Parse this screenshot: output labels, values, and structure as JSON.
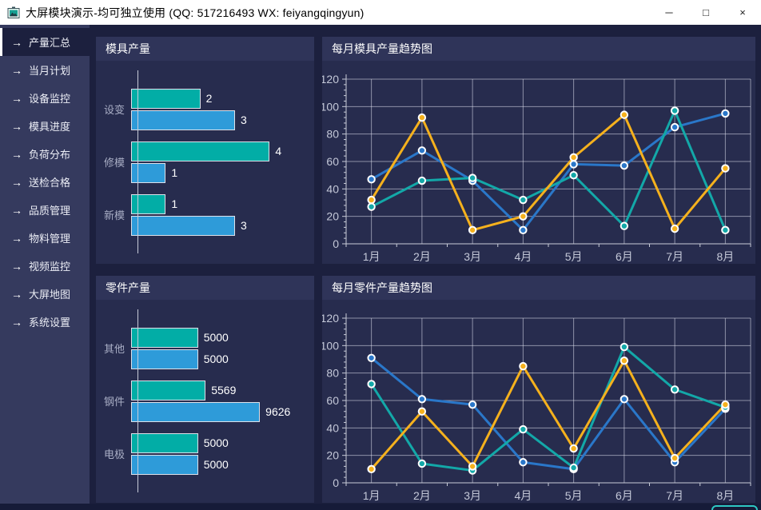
{
  "window": {
    "title": "大屏模块演示-均可独立使用 (QQ: 517216493  WX: feiyangqingyun)",
    "app_icon": "picture-icon",
    "controls": {
      "minimize": "─",
      "maximize": "□",
      "close": "×"
    }
  },
  "colors": {
    "titlebar_bg": "#ffffff",
    "content_bg": "#1c203e",
    "sidebar_bg": "#353a5e",
    "sidebar_active_bg": "#1c203e",
    "panel_bg": "#272c4e",
    "panel_header_bg": "#2f3459",
    "bar_teal": "#02ada6",
    "bar_blue": "#2e9bd9",
    "line_blue": "#2a77c9",
    "line_teal": "#13a8a8",
    "line_yellow": "#f5b11d",
    "grid_line": "#9ba0b5",
    "axis_line": "#c8ccd8",
    "axis_text": "#c4c8d8",
    "accent_corner": "#2ec8c4"
  },
  "sidebar": {
    "items": [
      {
        "label": "产量汇总",
        "active": true
      },
      {
        "label": "当月计划",
        "active": false
      },
      {
        "label": "设备监控",
        "active": false
      },
      {
        "label": "模具进度",
        "active": false
      },
      {
        "label": "负荷分布",
        "active": false
      },
      {
        "label": "送检合格",
        "active": false
      },
      {
        "label": "品质管理",
        "active": false
      },
      {
        "label": "物料管理",
        "active": false
      },
      {
        "label": "视频监控",
        "active": false
      },
      {
        "label": "大屏地图",
        "active": false
      },
      {
        "label": "系统设置",
        "active": false
      }
    ]
  },
  "panels": {
    "mold_bar": {
      "title": "模具产量"
    },
    "mold_trend": {
      "title": "每月模具产量趋势图"
    },
    "part_bar": {
      "title": "零件产量"
    },
    "part_trend": {
      "title": "每月零件产量趋势图"
    }
  },
  "chart_data": [
    {
      "id": "mold_bar",
      "type": "bar",
      "orientation": "horizontal",
      "title": "模具产量",
      "categories": [
        "设变",
        "修模",
        "新模"
      ],
      "series": [
        {
          "name": "teal",
          "color": "#02ada6",
          "values": [
            2,
            4,
            1
          ]
        },
        {
          "name": "blue",
          "color": "#2e9bd9",
          "values": [
            3,
            1,
            3
          ]
        }
      ],
      "value_axis_max_hint": 5.1,
      "grid": false,
      "data_labels": true
    },
    {
      "id": "mold_trend",
      "type": "line",
      "title": "每月模具产量趋势图",
      "categories": [
        "1月",
        "2月",
        "3月",
        "4月",
        "5月",
        "6月",
        "7月",
        "8月"
      ],
      "xlabel": "",
      "ylabel": "",
      "ylim": [
        0,
        120
      ],
      "ytick_step": 20,
      "grid": true,
      "legend_position": "none",
      "series": [
        {
          "name": "blue",
          "color": "#2a77c9",
          "values": [
            47,
            68,
            46,
            10,
            58,
            57,
            85,
            95
          ]
        },
        {
          "name": "teal",
          "color": "#13a8a8",
          "values": [
            27,
            46,
            48,
            32,
            50,
            13,
            97,
            10
          ]
        },
        {
          "name": "yellow",
          "color": "#f5b11d",
          "values": [
            32,
            92,
            10,
            20,
            63,
            94,
            11,
            55
          ]
        }
      ]
    },
    {
      "id": "part_bar",
      "type": "bar",
      "orientation": "horizontal",
      "title": "零件产量",
      "categories": [
        "其他",
        "钢件",
        "电极"
      ],
      "series": [
        {
          "name": "teal",
          "color": "#02ada6",
          "values": [
            5000,
            5569,
            5000
          ]
        },
        {
          "name": "blue",
          "color": "#2e9bd9",
          "values": [
            5000,
            9626,
            5000
          ]
        }
      ],
      "value_axis_max_hint": 13200,
      "grid": false,
      "data_labels": true
    },
    {
      "id": "part_trend",
      "type": "line",
      "title": "每月零件产量趋势图",
      "categories": [
        "1月",
        "2月",
        "3月",
        "4月",
        "5月",
        "6月",
        "7月",
        "8月"
      ],
      "xlabel": "",
      "ylabel": "",
      "ylim": [
        0,
        120
      ],
      "ytick_step": 20,
      "grid": true,
      "legend_position": "none",
      "series": [
        {
          "name": "blue",
          "color": "#2a77c9",
          "values": [
            91,
            61,
            57,
            15,
            10,
            61,
            15,
            54
          ]
        },
        {
          "name": "teal",
          "color": "#13a8a8",
          "values": [
            72,
            14,
            9,
            39,
            11,
            99,
            68,
            55
          ]
        },
        {
          "name": "yellow",
          "color": "#f5b11d",
          "values": [
            10,
            52,
            12,
            85,
            25,
            89,
            18,
            57
          ]
        }
      ]
    }
  ]
}
